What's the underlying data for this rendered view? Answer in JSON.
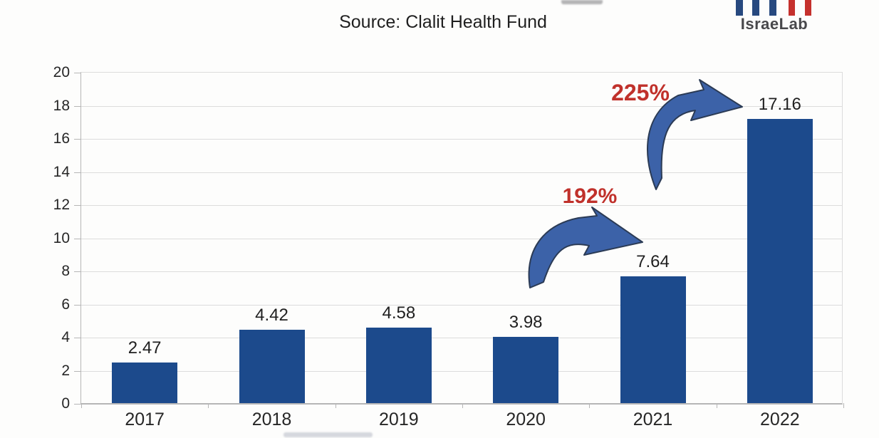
{
  "header": {
    "source_title": "Source: Clalit Health Fund"
  },
  "logo": {
    "wordmark": "IsraeLab"
  },
  "chart_data": {
    "type": "bar",
    "title": "Source: Clalit Health Fund",
    "categories": [
      "2017",
      "2018",
      "2019",
      "2020",
      "2021",
      "2022"
    ],
    "values": [
      2.47,
      4.42,
      4.58,
      3.98,
      7.64,
      17.16
    ],
    "value_labels": [
      "2.47",
      "4.42",
      "4.58",
      "3.98",
      "7.64",
      "17.16"
    ],
    "xlabel": "",
    "ylabel": "",
    "ylim": [
      0,
      20
    ],
    "ytick_step": 2,
    "grid": true,
    "legend": "none",
    "annotations": [
      {
        "text": "192%",
        "from": "2020",
        "to": "2021",
        "style": "red bold label with blue curved arrow"
      },
      {
        "text": "225%",
        "from": "2021",
        "to": "2022",
        "style": "red bold label with blue curved arrow"
      }
    ]
  },
  "colors": {
    "background": "#fdfdfc",
    "bar": "#1c4a8c",
    "arrow_fill": "#3c62a8",
    "arrow_stroke": "#2b3b55",
    "percent_red": "#c0312b",
    "gridline": "#dcdcdc",
    "axis": "#b6b6b6",
    "text": "#1f1f1f",
    "tick_label": "#262626",
    "logo_blue": "#27497f",
    "logo_red": "#c5312d",
    "logo_text": "#48484b"
  }
}
